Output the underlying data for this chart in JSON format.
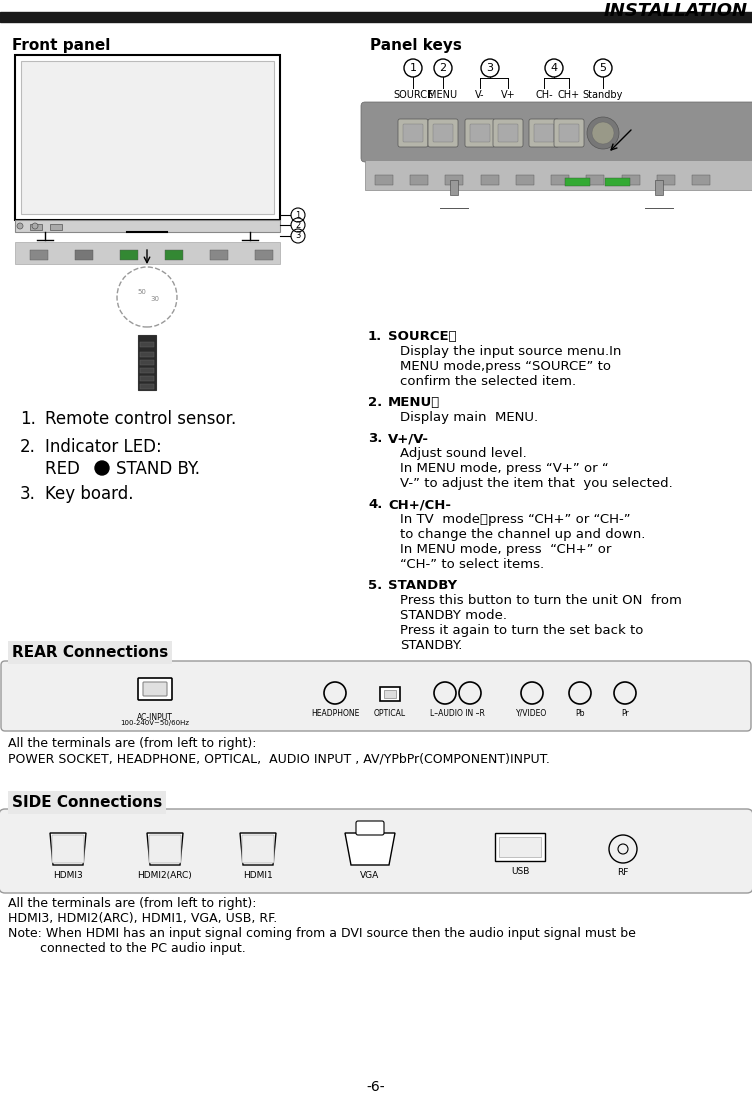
{
  "title": "INSTALLATION",
  "page_number": "-6-",
  "front_panel_title": "Front panel",
  "panel_keys_title": "Panel keys",
  "rear_connections_title": "REAR Connections",
  "side_connections_title": "SIDE Connections",
  "rear_text1": "All the terminals are (from left to right):",
  "rear_text2": "POWER SOCKET, HEADPHONE, OPTICAL,  AUDIO INPUT , AV/YPbPr(COMPONENT)INPUT.",
  "side_text1": "All the terminals are (from left to right):",
  "side_text2": "HDMI3, HDMI2(ARC), HDMI1, VGA, USB, RF.",
  "side_text3": "Note: When HDMI has an input signal coming from a DVI source then the audio input signal must be\n        connected to the PC audio input.",
  "bg_color": "#ffffff",
  "header_bar_color": "#1a1a1a"
}
